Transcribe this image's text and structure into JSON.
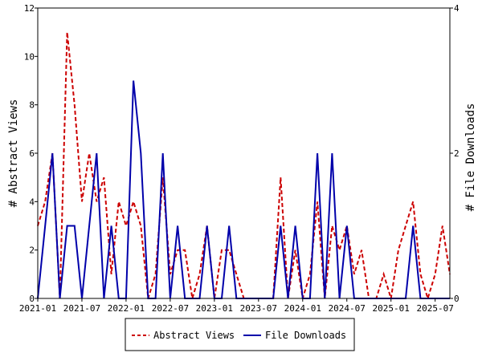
{
  "chart_data": {
    "type": "line",
    "title": "",
    "xlabel": "",
    "ylabel_left": "# Abstract Views",
    "ylabel_right": "# File Downloads",
    "ylim_left": [
      0,
      12
    ],
    "ylim_right": [
      0,
      4
    ],
    "yticks_left": [
      "0",
      "2",
      "4",
      "6",
      "8",
      "10",
      "12"
    ],
    "yticks_right": [
      "0",
      "2",
      "4"
    ],
    "x_ticks": [
      "2021-01",
      "2021-07",
      "2022-01",
      "2022-07",
      "2023-01",
      "2023-07",
      "2024-01",
      "2024-07",
      "2025-01",
      "2025-07"
    ],
    "x_range": [
      "2021-01",
      "2025-09"
    ],
    "grid": false,
    "legend_position": "bottom-center",
    "x": [
      "2021-01",
      "2021-02",
      "2021-03",
      "2021-04",
      "2021-05",
      "2021-06",
      "2021-07",
      "2021-08",
      "2021-09",
      "2021-10",
      "2021-11",
      "2021-12",
      "2022-01",
      "2022-02",
      "2022-03",
      "2022-04",
      "2022-05",
      "2022-06",
      "2022-07",
      "2022-08",
      "2022-09",
      "2022-10",
      "2022-11",
      "2022-12",
      "2023-01",
      "2023-02",
      "2023-03",
      "2023-04",
      "2023-05",
      "2023-06",
      "2023-07",
      "2023-08",
      "2023-09",
      "2023-10",
      "2023-11",
      "2023-12",
      "2024-01",
      "2024-02",
      "2024-03",
      "2024-04",
      "2024-05",
      "2024-06",
      "2024-07",
      "2024-08",
      "2024-09",
      "2024-10",
      "2024-11",
      "2024-12",
      "2025-01",
      "2025-02",
      "2025-03",
      "2025-04",
      "2025-05",
      "2025-06",
      "2025-07",
      "2025-08",
      "2025-09"
    ],
    "series": [
      {
        "name": "Abstract Views",
        "axis": "left",
        "color": "#cc0000",
        "dash": true,
        "values": [
          3,
          4,
          6,
          0,
          11,
          8,
          4,
          6,
          4,
          5,
          1,
          4,
          3,
          4,
          3,
          0,
          1,
          5,
          1,
          2,
          2,
          0,
          1,
          3,
          0,
          2,
          2,
          1,
          0,
          0,
          0,
          0,
          0,
          5,
          0,
          2,
          0,
          1,
          4,
          0,
          3,
          2,
          3,
          1,
          2,
          0,
          0,
          1,
          0,
          2,
          3,
          4,
          1,
          0,
          1,
          3,
          1
        ]
      },
      {
        "name": "File Downloads",
        "axis": "right",
        "color": "#0000aa",
        "dash": false,
        "values": [
          0,
          1,
          2,
          0,
          1,
          1,
          0,
          1,
          2,
          0,
          1,
          0,
          0,
          3,
          2,
          0,
          0,
          2,
          0,
          1,
          0,
          0,
          0,
          1,
          0,
          0,
          1,
          0,
          0,
          0,
          0,
          0,
          0,
          1,
          0,
          1,
          0,
          0,
          2,
          0,
          2,
          0,
          1,
          0,
          0,
          0,
          0,
          0,
          0,
          0,
          0,
          1,
          0,
          0,
          0,
          0,
          0
        ]
      }
    ]
  }
}
